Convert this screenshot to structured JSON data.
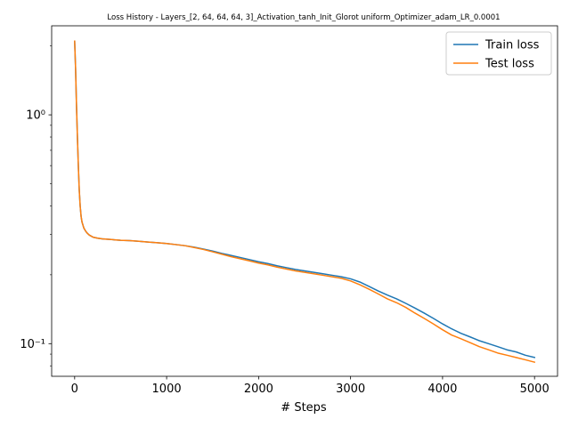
{
  "chart_data": {
    "type": "line",
    "title": "Loss History - Layers_[2, 64, 64, 64, 3]_Activation_tanh_Init_Glorot uniform_Optimizer_adam_LR_0.0001",
    "xlabel": "# Steps",
    "ylabel": "",
    "yscale": "log",
    "xlim": [
      -250,
      5250
    ],
    "ylim": [
      0.072,
      2.45
    ],
    "xticks": [
      0,
      1000,
      2000,
      3000,
      4000,
      5000
    ],
    "xtick_labels": [
      "0",
      "1000",
      "2000",
      "3000",
      "4000",
      "5000"
    ],
    "yticks": [
      0.1,
      1.0
    ],
    "ytick_labels": [
      "10⁻¹",
      "10⁰"
    ],
    "grid": false,
    "legend_position": "top-right",
    "series": [
      {
        "name": "Train loss",
        "color": "#1f77b4",
        "x": [
          0,
          10,
          20,
          30,
          40,
          50,
          60,
          70,
          80,
          90,
          100,
          120,
          140,
          160,
          180,
          200,
          250,
          300,
          400,
          500,
          600,
          700,
          800,
          900,
          1000,
          1100,
          1200,
          1300,
          1400,
          1500,
          1600,
          1700,
          1800,
          1900,
          2000,
          2100,
          2200,
          2300,
          2400,
          2500,
          2600,
          2700,
          2800,
          2900,
          3000,
          3100,
          3200,
          3300,
          3400,
          3500,
          3600,
          3700,
          3800,
          3900,
          4000,
          4100,
          4200,
          4300,
          4400,
          4500,
          4600,
          4700,
          4800,
          4900,
          5000
        ],
        "values": [
          2.1,
          1.6,
          1.1,
          0.8,
          0.6,
          0.47,
          0.4,
          0.36,
          0.34,
          0.33,
          0.32,
          0.31,
          0.303,
          0.298,
          0.295,
          0.292,
          0.289,
          0.287,
          0.285,
          0.283,
          0.282,
          0.28,
          0.278,
          0.276,
          0.274,
          0.271,
          0.268,
          0.264,
          0.259,
          0.254,
          0.248,
          0.243,
          0.238,
          0.233,
          0.228,
          0.224,
          0.219,
          0.215,
          0.211,
          0.208,
          0.205,
          0.202,
          0.199,
          0.196,
          0.192,
          0.186,
          0.178,
          0.17,
          0.163,
          0.157,
          0.15,
          0.143,
          0.136,
          0.129,
          0.122,
          0.116,
          0.111,
          0.107,
          0.103,
          0.1,
          0.097,
          0.094,
          0.092,
          0.089,
          0.087
        ]
      },
      {
        "name": "Test loss",
        "color": "#ff7f0e",
        "x": [
          0,
          10,
          20,
          30,
          40,
          50,
          60,
          70,
          80,
          90,
          100,
          120,
          140,
          160,
          180,
          200,
          250,
          300,
          400,
          500,
          600,
          700,
          800,
          900,
          1000,
          1100,
          1200,
          1300,
          1400,
          1500,
          1600,
          1700,
          1800,
          1900,
          2000,
          2100,
          2200,
          2300,
          2400,
          2500,
          2600,
          2700,
          2800,
          2900,
          3000,
          3100,
          3200,
          3300,
          3400,
          3500,
          3600,
          3700,
          3800,
          3900,
          4000,
          4100,
          4200,
          4300,
          4400,
          4500,
          4600,
          4700,
          4800,
          4900,
          5000
        ],
        "values": [
          2.1,
          1.6,
          1.1,
          0.8,
          0.6,
          0.47,
          0.4,
          0.36,
          0.34,
          0.33,
          0.32,
          0.31,
          0.303,
          0.298,
          0.295,
          0.292,
          0.289,
          0.287,
          0.285,
          0.283,
          0.282,
          0.28,
          0.278,
          0.276,
          0.274,
          0.271,
          0.268,
          0.263,
          0.258,
          0.252,
          0.246,
          0.24,
          0.235,
          0.23,
          0.225,
          0.221,
          0.216,
          0.212,
          0.208,
          0.205,
          0.202,
          0.199,
          0.196,
          0.193,
          0.188,
          0.181,
          0.173,
          0.165,
          0.157,
          0.151,
          0.144,
          0.136,
          0.129,
          0.122,
          0.115,
          0.109,
          0.105,
          0.101,
          0.097,
          0.094,
          0.091,
          0.089,
          0.087,
          0.085,
          0.083
        ]
      }
    ]
  }
}
